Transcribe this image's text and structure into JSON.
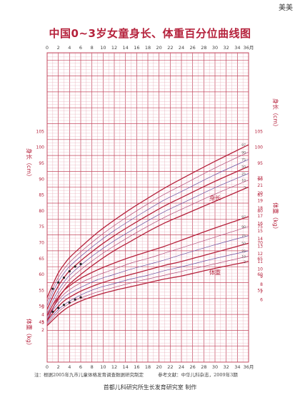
{
  "corner_mark": "美美",
  "title": "中国0~3岁女童身长、体重百分位曲线图",
  "footnote": {
    "note": "注：根据2005年九市儿童体格发育调查数据研究制定",
    "reference": "参考文献：中华儿科杂志，2009年3期"
  },
  "producer": "首都儿科研究所生长发育研究室 制作",
  "colors": {
    "grid_minor": "#e6a9b6",
    "grid_major": "#c4485f",
    "curve_main": "#b5223c",
    "curve_thin": "#b04a78",
    "curve_alt": "#6a4fa0",
    "axis_text": "#b5223c",
    "marker": "#222222"
  },
  "chart_data": {
    "type": "line",
    "title": "中国0~3岁女童身长、体重百分位曲线图",
    "x": {
      "unit": "月",
      "range": [
        0,
        36
      ],
      "tick_labels": [
        "0",
        "2",
        "4",
        "6",
        "8",
        "10",
        "12",
        "14",
        "16",
        "18",
        "20",
        "22",
        "24",
        "26",
        "28",
        "30",
        "32",
        "34",
        "36月"
      ],
      "grid_step": 1
    },
    "length_axis": {
      "label": "身长（cm）",
      "range": [
        45,
        105
      ],
      "tick_labels": [
        "45",
        "50",
        "55",
        "60",
        "65",
        "70",
        "75",
        "80",
        "85",
        "90",
        "95",
        "100",
        "105"
      ],
      "right_tick_labels": [
        "55",
        "60",
        "65",
        "70",
        "75",
        "80",
        "85",
        "90",
        "95",
        "100",
        "105"
      ]
    },
    "weight_axis": {
      "label": "体重（kg）",
      "range": [
        2,
        22
      ],
      "tick_labels": [
        "2",
        "3",
        "4",
        "5"
      ],
      "right_tick_labels": [
        "6",
        "7",
        "8",
        "9",
        "10",
        "11",
        "12",
        "13",
        "14",
        "15",
        "16",
        "17",
        "18",
        "19",
        "20",
        "21",
        "22"
      ]
    },
    "grid": true,
    "percentiles": [
      "3",
      "10",
      "25",
      "50",
      "75",
      "90",
      "97"
    ],
    "series": [
      {
        "name": "身长",
        "quantity": "length",
        "x": [
          0,
          1,
          2,
          3,
          4,
          6,
          9,
          12,
          15,
          18,
          21,
          24,
          30,
          36
        ],
        "p3": [
          45.4,
          49.3,
          52.5,
          55.0,
          57.0,
          60.0,
          64.0,
          67.5,
          70.5,
          73.5,
          76.2,
          78.5,
          83.0,
          87.5
        ],
        "p10": [
          46.6,
          50.5,
          53.8,
          56.3,
          58.4,
          61.5,
          65.5,
          69.0,
          72.2,
          75.2,
          78.0,
          80.5,
          85.3,
          89.7
        ],
        "p25": [
          47.8,
          51.7,
          55.0,
          57.6,
          59.7,
          62.9,
          67.0,
          70.6,
          73.8,
          76.9,
          79.8,
          82.3,
          87.3,
          91.8
        ],
        "p50": [
          49.0,
          53.0,
          56.4,
          59.0,
          61.1,
          64.3,
          68.5,
          72.2,
          75.5,
          78.6,
          81.6,
          84.2,
          89.3,
          94.0
        ],
        "p75": [
          50.2,
          54.3,
          57.8,
          60.4,
          62.5,
          65.7,
          70.0,
          73.8,
          77.2,
          80.4,
          83.5,
          86.1,
          91.4,
          96.2
        ],
        "p90": [
          51.4,
          55.5,
          59.1,
          61.7,
          63.8,
          67.1,
          71.5,
          75.4,
          78.9,
          82.2,
          85.3,
          88.0,
          93.5,
          98.5
        ],
        "p97": [
          52.7,
          56.8,
          60.5,
          63.1,
          65.3,
          68.6,
          73.2,
          77.1,
          80.7,
          84.0,
          87.2,
          90.1,
          95.6,
          100.8
        ]
      },
      {
        "name": "体重",
        "quantity": "weight",
        "x": [
          0,
          1,
          2,
          3,
          4,
          6,
          9,
          12,
          15,
          18,
          21,
          24,
          30,
          36
        ],
        "p3": [
          2.57,
          3.3,
          4.0,
          4.6,
          5.1,
          5.8,
          6.6,
          7.2,
          7.7,
          8.2,
          8.7,
          9.1,
          10.1,
          11.0
        ],
        "p10": [
          2.76,
          3.6,
          4.4,
          5.0,
          5.5,
          6.2,
          7.0,
          7.6,
          8.2,
          8.7,
          9.2,
          9.7,
          10.7,
          11.7
        ],
        "p25": [
          2.97,
          3.9,
          4.7,
          5.3,
          5.8,
          6.6,
          7.5,
          8.1,
          8.7,
          9.2,
          9.8,
          10.3,
          11.4,
          12.4
        ],
        "p50": [
          3.21,
          4.2,
          5.1,
          5.8,
          6.3,
          7.1,
          8.0,
          8.7,
          9.3,
          9.9,
          10.5,
          11.0,
          12.2,
          13.4
        ],
        "p75": [
          3.45,
          4.6,
          5.5,
          6.3,
          6.8,
          7.6,
          8.6,
          9.3,
          10.0,
          10.6,
          11.2,
          11.9,
          13.2,
          14.4
        ],
        "p90": [
          3.7,
          4.9,
          5.9,
          6.7,
          7.3,
          8.2,
          9.2,
          10.0,
          10.8,
          11.4,
          12.1,
          12.8,
          14.2,
          15.6
        ],
        "p97": [
          3.94,
          5.3,
          6.3,
          7.2,
          7.8,
          8.8,
          9.9,
          10.8,
          11.6,
          12.3,
          13.0,
          13.8,
          15.4,
          16.9
        ]
      }
    ],
    "markers": [
      {
        "name": "身长记录",
        "quantity": "length",
        "x": [
          1,
          2,
          3,
          4,
          5,
          6
        ],
        "values": [
          55.5,
          57.5,
          59.0,
          61.0,
          62.5,
          63.3
        ]
      },
      {
        "name": "体重记录",
        "quantity": "weight",
        "x": [
          1,
          2,
          3,
          4,
          5,
          6
        ],
        "values": [
          4.4,
          4.9,
          5.3,
          5.6,
          6.0,
          6.3
        ]
      }
    ]
  }
}
